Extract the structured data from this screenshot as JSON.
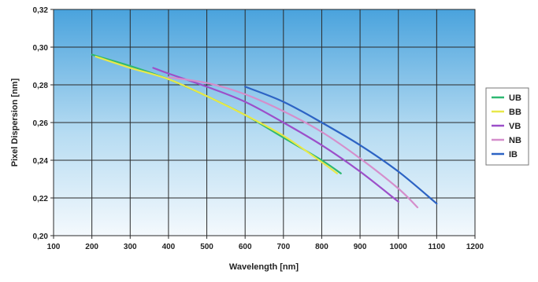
{
  "chart_data": {
    "type": "line",
    "title": "",
    "xlabel": "Wavelength [nm]",
    "ylabel": "Pixel Dispersion [nm]",
    "xlim": [
      100,
      1200
    ],
    "ylim": [
      0.2,
      0.32
    ],
    "xticks": [
      "100",
      "200",
      "300",
      "400",
      "500",
      "600",
      "700",
      "800",
      "900",
      "1000",
      "1100",
      "1200"
    ],
    "yticks": [
      "0,20",
      "0,22",
      "0,24",
      "0,26",
      "0,28",
      "0,30",
      "0,32"
    ],
    "grid": true,
    "legend_position": "right",
    "background": "blue-gradient",
    "series": [
      {
        "name": "UB",
        "color": "#2eb872",
        "x": [
          200,
          300,
          400,
          500,
          600,
          700,
          800,
          850
        ],
        "y": [
          0.296,
          0.29,
          0.283,
          0.274,
          0.264,
          0.252,
          0.24,
          0.233
        ]
      },
      {
        "name": "BB",
        "color": "#e8e84a",
        "x": [
          210,
          300,
          400,
          500,
          600,
          700,
          800,
          840
        ],
        "y": [
          0.295,
          0.289,
          0.283,
          0.274,
          0.264,
          0.253,
          0.239,
          0.233
        ]
      },
      {
        "name": "VB",
        "color": "#9c4fc9",
        "x": [
          360,
          400,
          500,
          600,
          700,
          800,
          900,
          1000
        ],
        "y": [
          0.289,
          0.286,
          0.279,
          0.271,
          0.26,
          0.248,
          0.234,
          0.218
        ]
      },
      {
        "name": "NB",
        "color": "#d58ecb",
        "x": [
          400,
          500,
          600,
          700,
          800,
          900,
          1000,
          1050
        ],
        "y": [
          0.284,
          0.281,
          0.275,
          0.266,
          0.255,
          0.241,
          0.225,
          0.215
        ]
      },
      {
        "name": "IB",
        "color": "#2c63c4",
        "x": [
          600,
          700,
          800,
          900,
          1000,
          1100
        ],
        "y": [
          0.279,
          0.271,
          0.26,
          0.248,
          0.234,
          0.217
        ]
      }
    ]
  }
}
